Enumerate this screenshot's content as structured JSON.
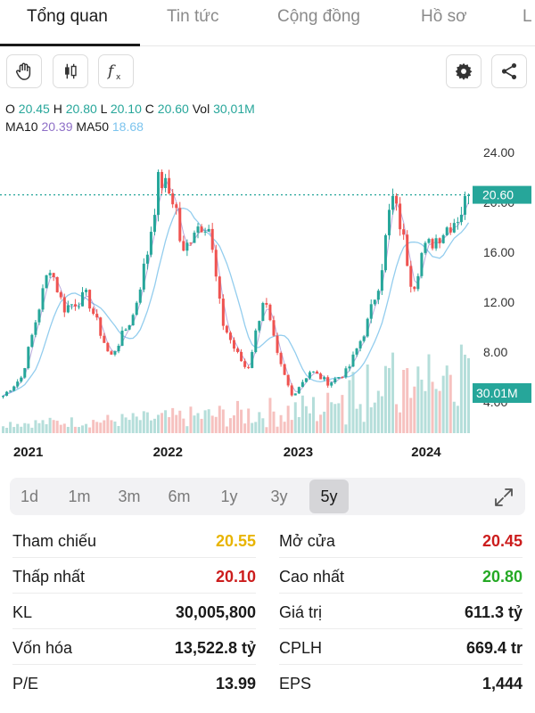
{
  "tabs": [
    {
      "label": "Tổng quan",
      "active": true
    },
    {
      "label": "Tin tức",
      "active": false
    },
    {
      "label": "Cộng đồng",
      "active": false
    },
    {
      "label": "Hồ sơ",
      "active": false
    },
    {
      "label": "L",
      "active": false
    }
  ],
  "toolbar": {
    "left_icons": [
      "hand-cursor-icon",
      "candlestick-icon",
      "function-icon"
    ],
    "right_icons": [
      "gear-icon",
      "share-icon"
    ]
  },
  "ohlc": {
    "o_label": "O",
    "o": "20.45",
    "h_label": "H",
    "h": "20.80",
    "l_label": "L",
    "l": "20.10",
    "c_label": "C",
    "c": "20.60",
    "vol_label": "Vol",
    "vol": "30,01M"
  },
  "ma": {
    "ma10_label": "MA10",
    "ma10": "20.39",
    "ma50_label": "MA50",
    "ma50": "18.68"
  },
  "chart_data": {
    "type": "candlestick",
    "x_ticks": [
      "2021",
      "2022",
      "2023",
      "2024"
    ],
    "y_ticks": [
      "24.00",
      "20.00",
      "16.00",
      "12.00",
      "8.00",
      "4.00"
    ],
    "ylim": [
      1.5,
      25.5
    ],
    "last_price": "20.60",
    "last_volume": "30.01M",
    "colors": {
      "up": "#26a69a",
      "down": "#ef5350",
      "ma10": "#8e6fc7",
      "ma50": "#93cdee",
      "price_line": "#26a69a"
    },
    "price_keypoints": [
      {
        "t": 0.0,
        "p": 4.5
      },
      {
        "t": 0.04,
        "p": 6.0
      },
      {
        "t": 0.1,
        "p": 15.0
      },
      {
        "t": 0.13,
        "p": 11.5
      },
      {
        "t": 0.18,
        "p": 12.5
      },
      {
        "t": 0.23,
        "p": 7.5
      },
      {
        "t": 0.28,
        "p": 11.0
      },
      {
        "t": 0.31,
        "p": 16.0
      },
      {
        "t": 0.335,
        "p": 22.0
      },
      {
        "t": 0.37,
        "p": 20.0
      },
      {
        "t": 0.385,
        "p": 15.5
      },
      {
        "t": 0.41,
        "p": 18.0
      },
      {
        "t": 0.44,
        "p": 18.5
      },
      {
        "t": 0.47,
        "p": 10.5
      },
      {
        "t": 0.5,
        "p": 8.0
      },
      {
        "t": 0.525,
        "p": 6.5
      },
      {
        "t": 0.56,
        "p": 12.5
      },
      {
        "t": 0.59,
        "p": 7.5
      },
      {
        "t": 0.62,
        "p": 4.5
      },
      {
        "t": 0.66,
        "p": 6.5
      },
      {
        "t": 0.7,
        "p": 5.5
      },
      {
        "t": 0.74,
        "p": 6.5
      },
      {
        "t": 0.78,
        "p": 10.0
      },
      {
        "t": 0.81,
        "p": 14.0
      },
      {
        "t": 0.835,
        "p": 20.5
      },
      {
        "t": 0.855,
        "p": 18.0
      },
      {
        "t": 0.88,
        "p": 13.0
      },
      {
        "t": 0.9,
        "p": 16.0
      },
      {
        "t": 0.94,
        "p": 17.5
      },
      {
        "t": 0.98,
        "p": 19.0
      },
      {
        "t": 1.0,
        "p": 20.6
      }
    ]
  },
  "ranges": [
    {
      "label": "1d",
      "active": false
    },
    {
      "label": "1m",
      "active": false
    },
    {
      "label": "3m",
      "active": false
    },
    {
      "label": "6m",
      "active": false
    },
    {
      "label": "1y",
      "active": false
    },
    {
      "label": "3y",
      "active": false
    },
    {
      "label": "5y",
      "active": true
    }
  ],
  "expand_icon": "expand-icon",
  "stats": [
    {
      "label": "Tham chiếu",
      "value": "20.55",
      "color": "#e8b400"
    },
    {
      "label": "Mở cửa",
      "value": "20.45",
      "color": "#cc1d1d"
    },
    {
      "label": "Thấp nhất",
      "value": "20.10",
      "color": "#cc1d1d"
    },
    {
      "label": "Cao nhất",
      "value": "20.80",
      "color": "#25a925"
    },
    {
      "label": "KL",
      "value": "30,005,800",
      "color": "#1a1a1a"
    },
    {
      "label": "Giá trị",
      "value": "611.3 tỷ",
      "color": "#1a1a1a"
    },
    {
      "label": "Vốn hóa",
      "value": "13,522.8 tỷ",
      "color": "#1a1a1a"
    },
    {
      "label": "CPLH",
      "value": "669.4 tr",
      "color": "#1a1a1a"
    },
    {
      "label": "P/E",
      "value": "13.99",
      "color": "#1a1a1a"
    },
    {
      "label": "EPS",
      "value": "1,444",
      "color": "#1a1a1a"
    }
  ]
}
